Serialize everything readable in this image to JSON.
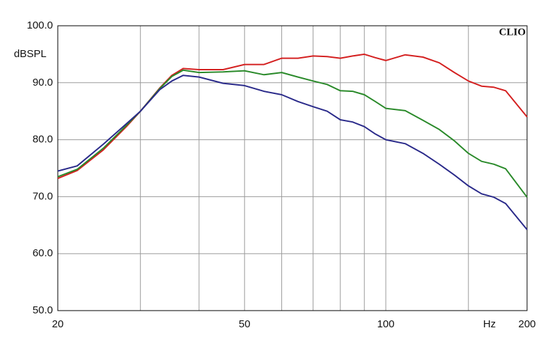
{
  "chart_data": {
    "type": "line",
    "y_label": "dBSPL",
    "x_label": "Hz",
    "annotation": "CLIO",
    "xscale": "log",
    "grid": true,
    "xlim": [
      20,
      200
    ],
    "ylim": [
      50,
      100
    ],
    "xticks": [
      20,
      50,
      100,
      200
    ],
    "xticks_minor": [
      30,
      40,
      60,
      70,
      80,
      90,
      150
    ],
    "yticks": [
      {
        "value": 50,
        "label": "50.0"
      },
      {
        "value": 60,
        "label": "60.0"
      },
      {
        "value": 70,
        "label": "70.0"
      },
      {
        "value": 80,
        "label": "80.0"
      },
      {
        "value": 90,
        "label": "90.0"
      },
      {
        "value": 100,
        "label": "100.0"
      }
    ],
    "x": [
      20,
      22,
      25,
      28,
      30,
      33,
      35,
      37,
      40,
      45,
      50,
      55,
      60,
      65,
      70,
      75,
      80,
      85,
      90,
      95,
      100,
      110,
      120,
      130,
      140,
      150,
      160,
      170,
      180,
      200
    ],
    "series": [
      {
        "color": "#d42020",
        "values": [
          73.2,
          74.6,
          78.2,
          82.3,
          85,
          89.1,
          91.3,
          92.5,
          92.3,
          92.3,
          93.2,
          93.2,
          94.3,
          94.3,
          94.7,
          94.6,
          94.3,
          94.7,
          95,
          94.4,
          93.9,
          94.9,
          94.5,
          93.5,
          91.8,
          90.3,
          89.4,
          89.2,
          88.6,
          84
        ]
      },
      {
        "color": "#2a8a2a",
        "values": [
          73.5,
          74.8,
          78.5,
          82.5,
          85,
          89,
          91.1,
          92.2,
          91.8,
          91.9,
          92.1,
          91.4,
          91.8,
          91,
          90.3,
          89.7,
          88.6,
          88.5,
          87.9,
          86.7,
          85.5,
          85.1,
          83.4,
          81.8,
          79.8,
          77.6,
          76.2,
          75.7,
          74.9,
          69.9
        ]
      },
      {
        "color": "#2a2a8a",
        "values": [
          74.5,
          75.4,
          79.2,
          82.8,
          85,
          88.8,
          90.3,
          91.3,
          91,
          89.9,
          89.5,
          88.5,
          87.9,
          86.7,
          85.8,
          85,
          83.5,
          83.1,
          82.3,
          81,
          80,
          79.3,
          77.6,
          75.7,
          73.8,
          71.9,
          70.5,
          69.9,
          68.8,
          64.2
        ]
      }
    ]
  }
}
